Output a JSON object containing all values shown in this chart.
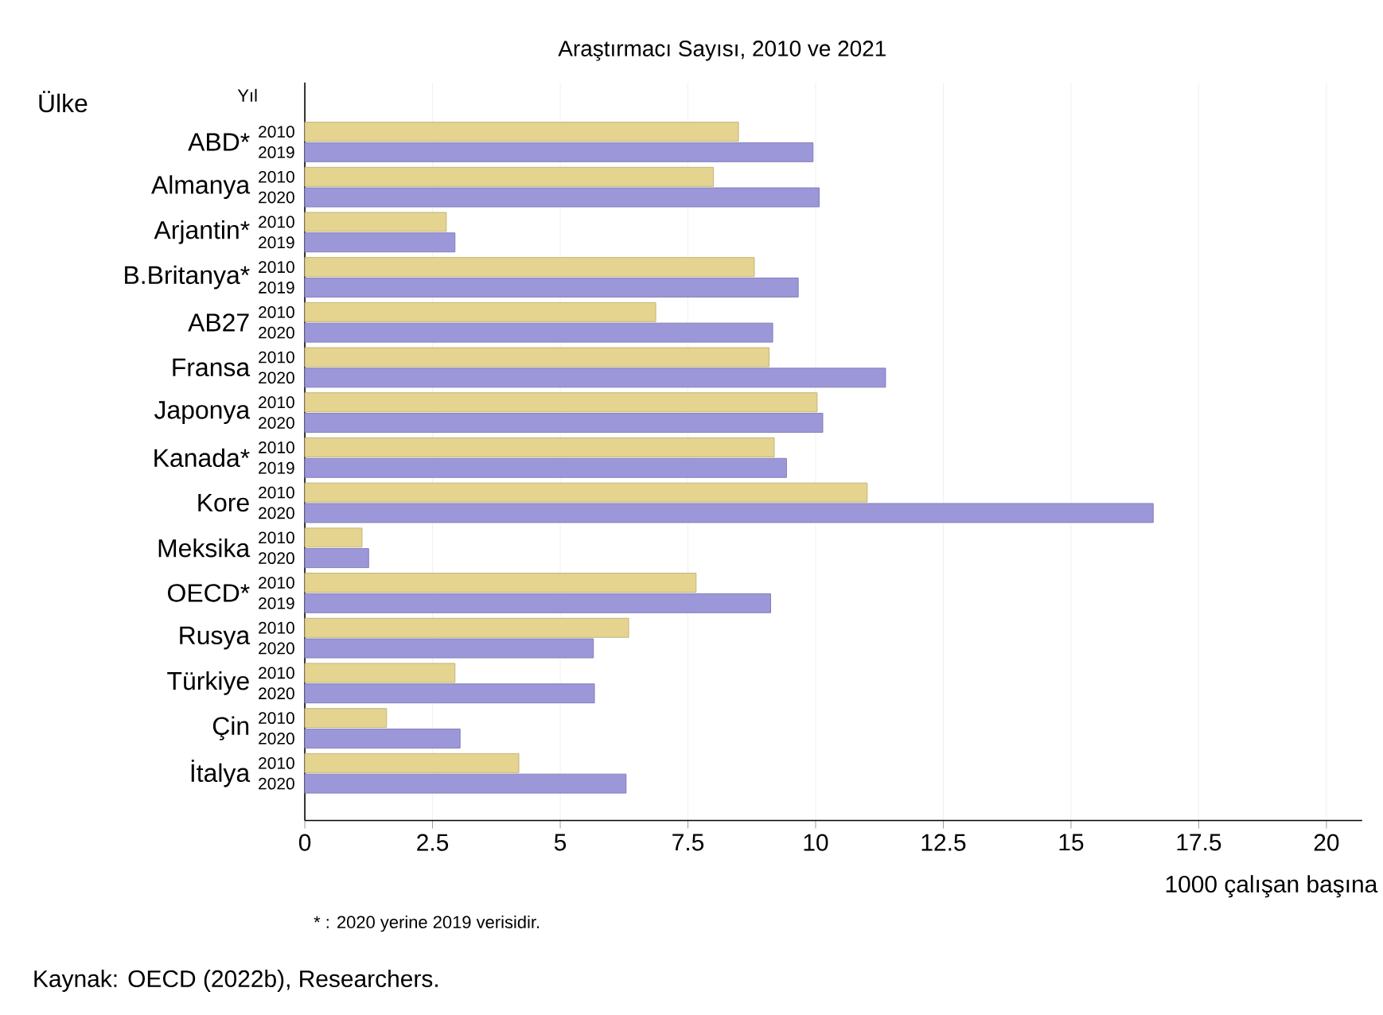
{
  "chart_data": {
    "type": "bar",
    "orientation": "horizontal",
    "title": "Araştırmacı Sayısı, 2010 ve 2021",
    "xlabel": "1000 çalışan başına",
    "categories": [
      "2010",
      "2019",
      "2010",
      "2020",
      "2010",
      "2019",
      "2010",
      "2019",
      "2010",
      "2020",
      "2010",
      "2020",
      "2010",
      "2020",
      "2010",
      "2019",
      "2010",
      "2020",
      "2010",
      "2020",
      "2010",
      "2019",
      "2010",
      "2020",
      "2010",
      "2020",
      "2010",
      "2020",
      "2010",
      "2020"
    ],
    "values": [
      8.49,
      9.95,
      8.0,
      10.07,
      2.77,
      2.94,
      8.8,
      9.66,
      6.87,
      9.16,
      9.09,
      11.37,
      10.03,
      10.14,
      9.19,
      9.43,
      11.01,
      16.61,
      1.12,
      1.25,
      7.66,
      9.12,
      6.34,
      5.65,
      2.94,
      5.67,
      1.6,
      3.04,
      4.19,
      6.29
    ],
    "colors": [
      "#e4d490",
      "#9b97d8",
      "#e4d490",
      "#9b97d8",
      "#e4d490",
      "#9b97d8",
      "#e4d490",
      "#9b97d8",
      "#e4d490",
      "#9b97d8",
      "#e4d490",
      "#9b97d8",
      "#e4d490",
      "#9b97d8",
      "#e4d490",
      "#9b97d8",
      "#e4d490",
      "#9b97d8",
      "#e4d490",
      "#9b97d8",
      "#e4d490",
      "#9b97d8",
      "#e4d490",
      "#9b97d8",
      "#e4d490",
      "#9b97d8",
      "#e4d490",
      "#9b97d8",
      "#e4d490",
      "#9b97d8"
    ],
    "xlim": [
      0,
      20.7
    ],
    "xticks": [
      0,
      2.5,
      5,
      7.5,
      10,
      12.5,
      15,
      17.5,
      20
    ],
    "grid": "x",
    "annotations": [
      "ABD*",
      "Almanya",
      "Arjantin*",
      "B.Britanya*",
      "AB27",
      "Fransa",
      "Japonya",
      "Kanada*",
      "Kore",
      "Meksika",
      "OECD*",
      "Rusya",
      "Türkiye",
      "Çin",
      "İtalya",
      "Ülke",
      "Yıl",
      "* : 2020 yerine 2019 verisidir.",
      "Kaynak: OECD (2022b), Researchers."
    ]
  }
}
